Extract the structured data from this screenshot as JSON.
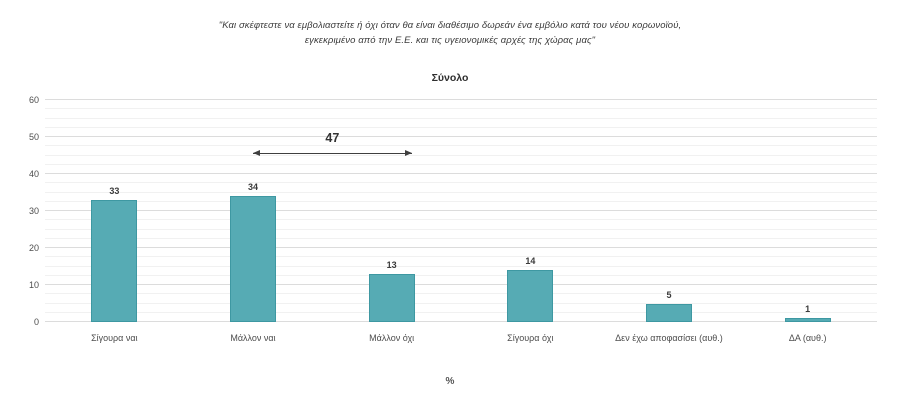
{
  "question_title": {
    "line1": "\"Και σκέφτεστε να εμβολιαστείτε ή όχι όταν θα είναι διαθέσιμο δωρεάν ένα εμβόλιο κατά του νέου κορωνοϊού,",
    "line2": "εγκεκριμένο από την Ε.Ε. και τις υγειονομικές αρχές της χώρας μας\""
  },
  "chart_data": {
    "type": "bar",
    "title": "Σύνολο",
    "categories": [
      "Σίγουρα ναι",
      "Μάλλον ναι",
      "Μάλλον όχι",
      "Σίγουρα όχι",
      "Δεν έχω αποφασίσει (αυθ.)",
      "ΔΑ (αυθ.)"
    ],
    "values": [
      33,
      34,
      13,
      14,
      5,
      1
    ],
    "xlabel": "%",
    "ylabel": "",
    "ylim": [
      0,
      60
    ],
    "yticks": [
      0,
      10,
      20,
      30,
      40,
      50,
      60
    ],
    "minor_grid_step": 2.5,
    "grid": true,
    "legend_position": "none",
    "annotation": {
      "label": "47",
      "from_category": "Μάλλον ναι",
      "to_category": "Μάλλον όχι"
    },
    "bar_color": "#56abb4",
    "bar_border_color": "#3e98a2"
  },
  "colors": {
    "background": "#ffffff",
    "major_grid": "#dcdcdc",
    "minor_grid": "#f1f1f1",
    "title_text": "#3b3b3b",
    "axis_text": "#4d4d4d",
    "annotation": "#3f3f3f"
  }
}
